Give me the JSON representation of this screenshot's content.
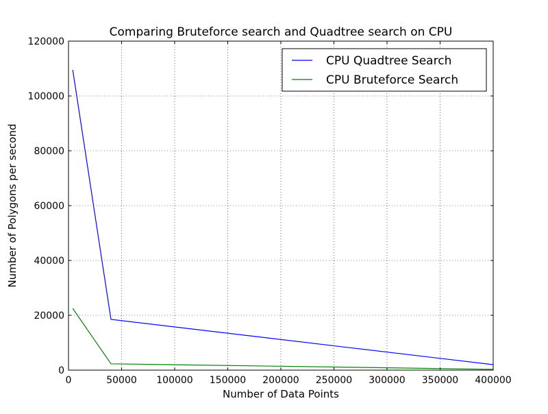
{
  "chart_data": {
    "type": "line",
    "title": "Comparing Bruteforce search and Quadtree search on CPU",
    "xlabel": "Number of Data Points",
    "ylabel": "Number of Polygons per second",
    "xlim": [
      0,
      400000
    ],
    "ylim": [
      0,
      120000
    ],
    "x_ticks": [
      0,
      50000,
      100000,
      150000,
      200000,
      250000,
      300000,
      350000,
      400000
    ],
    "y_ticks": [
      0,
      20000,
      40000,
      60000,
      80000,
      100000,
      120000
    ],
    "x_tick_labels": [
      "0",
      "50000",
      "100000",
      "150000",
      "200000",
      "250000",
      "300000",
      "350000",
      "400000"
    ],
    "y_tick_labels": [
      "0",
      "20000",
      "40000",
      "60000",
      "80000",
      "100000",
      "120000"
    ],
    "grid": true,
    "legend_position": "top-right",
    "series": [
      {
        "name": "CPU Quadtree Search",
        "color": "#0000ff",
        "x": [
          4000,
          40000,
          400000
        ],
        "y": [
          109500,
          18500,
          2000
        ]
      },
      {
        "name": "CPU Bruteforce Search",
        "color": "#008000",
        "x": [
          4000,
          40000,
          400000
        ],
        "y": [
          22500,
          2300,
          300
        ]
      }
    ]
  }
}
